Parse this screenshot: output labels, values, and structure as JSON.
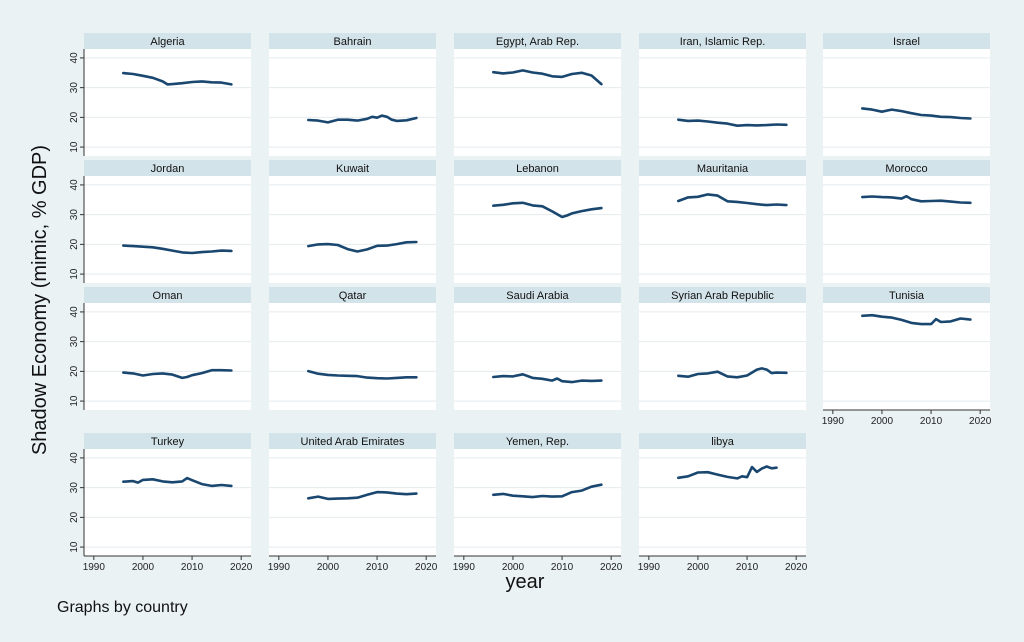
{
  "chart_data": {
    "type": "line",
    "title": "",
    "ylabel": "Shadow Economy (mimic, % GDP)",
    "xlabel": "year",
    "note": "Graphs by country",
    "xlim": [
      1988,
      2022
    ],
    "ylim": [
      7,
      43
    ],
    "xticks": [
      1990,
      2000,
      2010,
      2020
    ],
    "yticks": [
      10,
      20,
      30,
      40
    ],
    "grid": true,
    "line_color": "#1a476f",
    "panels": [
      {
        "name": "Algeria",
        "x": [
          1996,
          1998,
          2000,
          2002,
          2004,
          2005,
          2006,
          2008,
          2010,
          2012,
          2014,
          2016,
          2018
        ],
        "y": [
          34.9,
          34.6,
          34.0,
          33.3,
          32.1,
          31.1,
          31.2,
          31.5,
          31.9,
          32.1,
          31.8,
          31.7,
          31.1
        ]
      },
      {
        "name": "Bahrain",
        "x": [
          1996,
          1998,
          2000,
          2002,
          2004,
          2006,
          2008,
          2009,
          2010,
          2011,
          2012,
          2013,
          2014,
          2016,
          2018
        ],
        "y": [
          19.1,
          18.9,
          18.3,
          19.2,
          19.2,
          18.9,
          19.5,
          20.2,
          19.9,
          20.6,
          20.2,
          19.2,
          18.8,
          19.0,
          19.8
        ]
      },
      {
        "name": "Egypt, Arab Rep.",
        "x": [
          1996,
          1998,
          2000,
          2002,
          2004,
          2006,
          2008,
          2010,
          2012,
          2014,
          2016,
          2018
        ],
        "y": [
          35.2,
          34.8,
          35.1,
          35.8,
          35.1,
          34.7,
          33.8,
          33.6,
          34.6,
          35.0,
          34.1,
          31.2
        ]
      },
      {
        "name": "Iran, Islamic Rep.",
        "x": [
          1996,
          1998,
          2000,
          2002,
          2004,
          2006,
          2008,
          2010,
          2012,
          2014,
          2016,
          2018
        ],
        "y": [
          19.2,
          18.8,
          18.9,
          18.6,
          18.2,
          17.9,
          17.2,
          17.4,
          17.3,
          17.4,
          17.6,
          17.5
        ]
      },
      {
        "name": "Israel",
        "x": [
          1996,
          1998,
          2000,
          2002,
          2004,
          2006,
          2008,
          2010,
          2012,
          2014,
          2016,
          2018
        ],
        "y": [
          23.0,
          22.6,
          21.9,
          22.6,
          22.1,
          21.4,
          20.8,
          20.6,
          20.2,
          20.1,
          19.8,
          19.6
        ]
      },
      {
        "name": "Jordan",
        "x": [
          1996,
          1998,
          2000,
          2002,
          2004,
          2006,
          2008,
          2010,
          2012,
          2014,
          2016,
          2018
        ],
        "y": [
          19.6,
          19.4,
          19.2,
          19.0,
          18.5,
          17.9,
          17.3,
          17.1,
          17.4,
          17.6,
          17.9,
          17.8
        ]
      },
      {
        "name": "Kuwait",
        "x": [
          1996,
          1998,
          2000,
          2002,
          2004,
          2006,
          2008,
          2010,
          2012,
          2014,
          2016,
          2018
        ],
        "y": [
          19.4,
          20.0,
          20.1,
          19.8,
          18.4,
          17.6,
          18.3,
          19.5,
          19.6,
          20.1,
          20.7,
          20.8
        ]
      },
      {
        "name": "Lebanon",
        "x": [
          1996,
          1998,
          2000,
          2002,
          2004,
          2006,
          2008,
          2010,
          2011,
          2012,
          2014,
          2016,
          2018
        ],
        "y": [
          33.0,
          33.3,
          33.8,
          34.0,
          33.1,
          32.8,
          31.1,
          29.2,
          29.7,
          30.4,
          31.2,
          31.8,
          32.2
        ]
      },
      {
        "name": "Mauritania",
        "x": [
          1996,
          1998,
          2000,
          2002,
          2004,
          2006,
          2008,
          2010,
          2012,
          2014,
          2016,
          2018
        ],
        "y": [
          34.6,
          35.8,
          36.0,
          36.8,
          36.4,
          34.5,
          34.3,
          33.9,
          33.5,
          33.2,
          33.4,
          33.2
        ]
      },
      {
        "name": "Morocco",
        "x": [
          1996,
          1998,
          2000,
          2002,
          2004,
          2005,
          2006,
          2008,
          2010,
          2012,
          2014,
          2016,
          2018
        ],
        "y": [
          35.9,
          36.1,
          35.9,
          35.8,
          35.4,
          36.2,
          35.2,
          34.5,
          34.6,
          34.7,
          34.4,
          34.1,
          34.0
        ]
      },
      {
        "name": "Oman",
        "x": [
          1996,
          1998,
          2000,
          2002,
          2004,
          2006,
          2008,
          2009,
          2010,
          2012,
          2014,
          2016,
          2018
        ],
        "y": [
          19.6,
          19.3,
          18.6,
          19.1,
          19.3,
          18.9,
          17.8,
          18.1,
          18.7,
          19.4,
          20.4,
          20.4,
          20.3
        ]
      },
      {
        "name": "Qatar",
        "x": [
          1996,
          1998,
          2000,
          2002,
          2004,
          2006,
          2008,
          2010,
          2012,
          2014,
          2016,
          2018
        ],
        "y": [
          20.1,
          19.2,
          18.8,
          18.6,
          18.5,
          18.4,
          17.9,
          17.7,
          17.6,
          17.8,
          18.0,
          18.0
        ]
      },
      {
        "name": "Saudi Arabia",
        "x": [
          1996,
          1998,
          2000,
          2002,
          2004,
          2006,
          2008,
          2009,
          2010,
          2012,
          2014,
          2016,
          2018
        ],
        "y": [
          18.1,
          18.4,
          18.3,
          19.0,
          17.8,
          17.5,
          16.9,
          17.6,
          16.7,
          16.4,
          16.9,
          16.8,
          16.9
        ]
      },
      {
        "name": "Syrian Arab Republic",
        "x": [
          1996,
          1998,
          2000,
          2002,
          2004,
          2006,
          2008,
          2010,
          2012,
          2013,
          2014,
          2015,
          2016,
          2018
        ],
        "y": [
          18.5,
          18.2,
          19.1,
          19.3,
          19.9,
          18.3,
          18.0,
          18.6,
          20.6,
          21.0,
          20.6,
          19.4,
          19.6,
          19.5
        ]
      },
      {
        "name": "Tunisia",
        "x": [
          1996,
          1998,
          2000,
          2002,
          2004,
          2006,
          2008,
          2010,
          2011,
          2012,
          2014,
          2016,
          2018
        ],
        "y": [
          38.7,
          38.9,
          38.4,
          38.1,
          37.3,
          36.3,
          35.9,
          35.9,
          37.6,
          36.6,
          36.8,
          37.8,
          37.4
        ]
      },
      {
        "name": "Turkey",
        "x": [
          1996,
          1998,
          1999,
          2000,
          2002,
          2004,
          2006,
          2008,
          2009,
          2010,
          2012,
          2014,
          2016,
          2018
        ],
        "y": [
          32.0,
          32.2,
          31.7,
          32.6,
          32.8,
          32.1,
          31.8,
          32.1,
          33.2,
          32.5,
          31.2,
          30.6,
          30.9,
          30.6
        ]
      },
      {
        "name": "United Arab Emirates",
        "x": [
          1996,
          1998,
          2000,
          2002,
          2004,
          2006,
          2008,
          2010,
          2012,
          2014,
          2016,
          2018
        ],
        "y": [
          26.4,
          27.0,
          26.2,
          26.3,
          26.4,
          26.6,
          27.6,
          28.5,
          28.4,
          28.0,
          27.8,
          28.0
        ]
      },
      {
        "name": "Yemen, Rep.",
        "x": [
          1996,
          1998,
          2000,
          2002,
          2004,
          2006,
          2008,
          2010,
          2012,
          2014,
          2016,
          2018
        ],
        "y": [
          27.6,
          27.9,
          27.3,
          27.1,
          26.8,
          27.2,
          27.0,
          27.1,
          28.5,
          29.0,
          30.3,
          31.0
        ]
      },
      {
        "name": "libya",
        "x": [
          1996,
          1998,
          2000,
          2002,
          2004,
          2006,
          2008,
          2009,
          2010,
          2011,
          2012,
          2013,
          2014,
          2015,
          2016
        ],
        "y": [
          33.3,
          33.8,
          35.1,
          35.2,
          34.4,
          33.6,
          33.1,
          33.8,
          33.5,
          36.9,
          35.3,
          36.4,
          37.1,
          36.5,
          36.7
        ]
      }
    ]
  }
}
